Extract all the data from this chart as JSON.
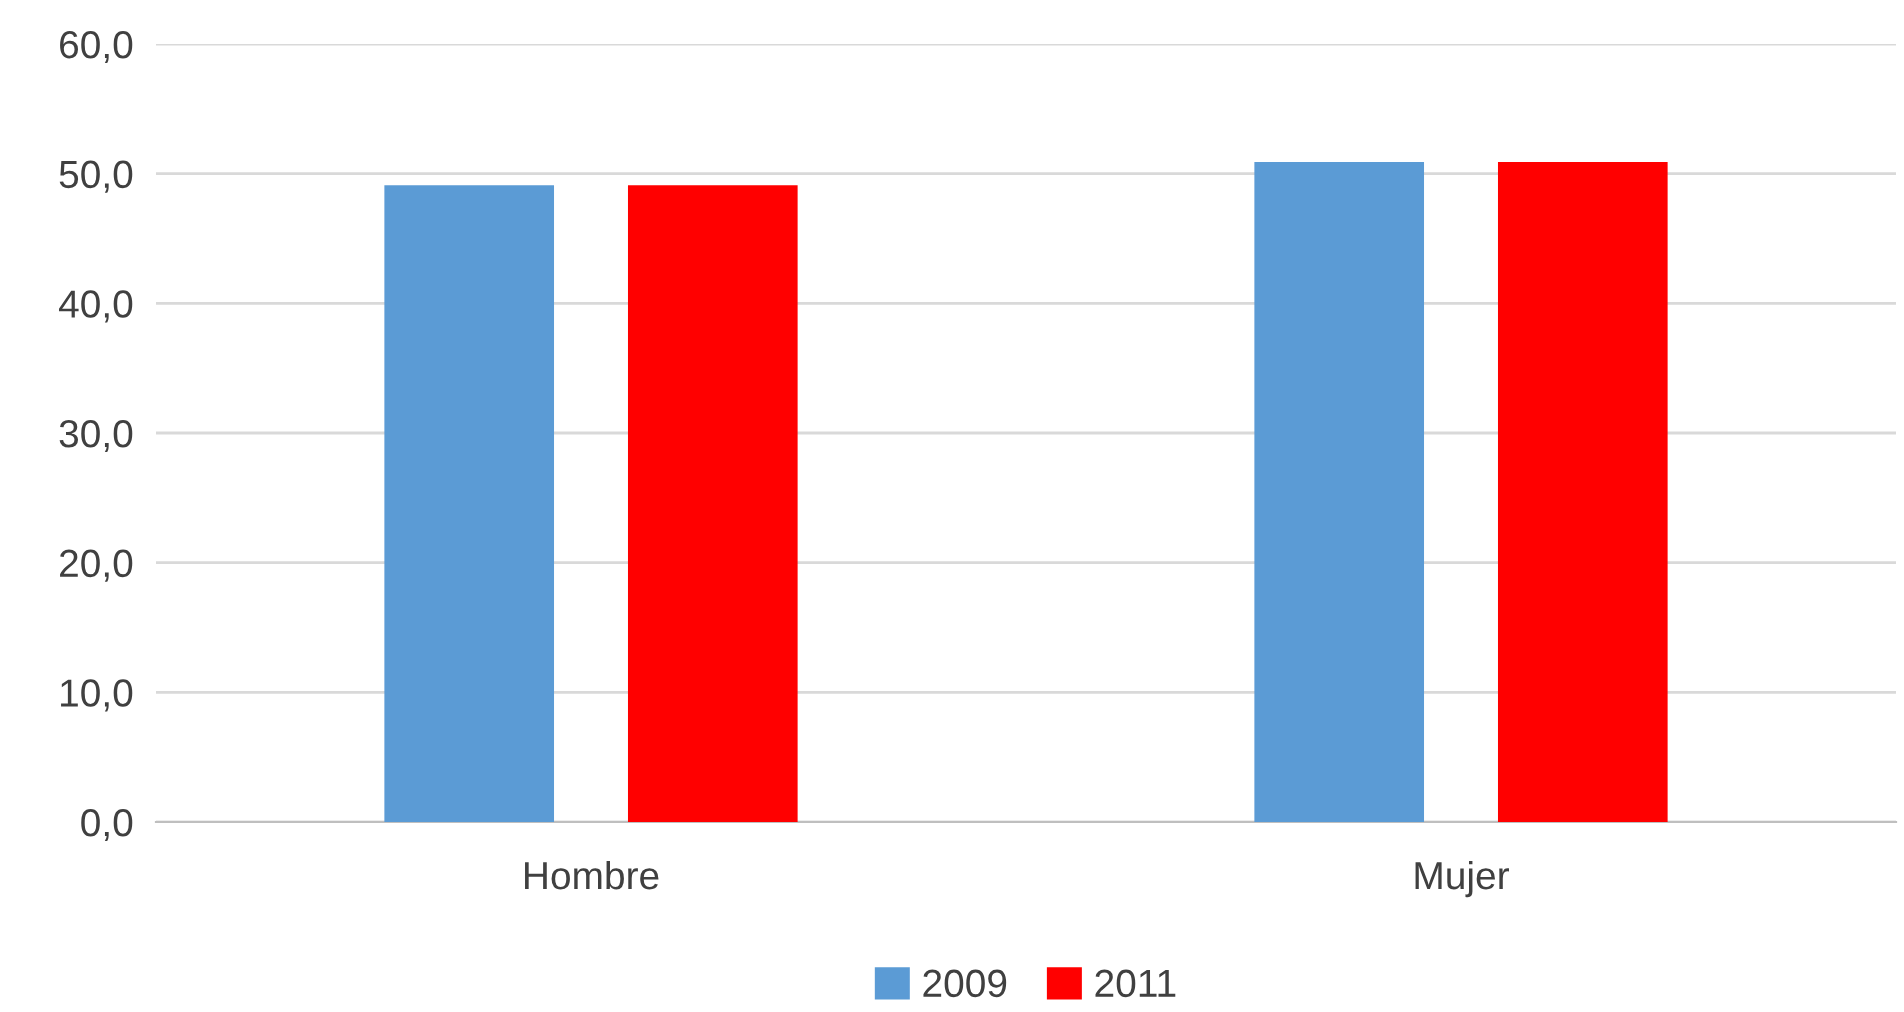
{
  "chart_data": {
    "type": "bar",
    "categories": [
      "Hombre",
      "Mujer"
    ],
    "series": [
      {
        "name": "2009",
        "color": "#5b9bd5",
        "values": [
          49.1,
          50.9
        ]
      },
      {
        "name": "2011",
        "color": "#ff0000",
        "values": [
          49.1,
          50.9
        ]
      }
    ],
    "ylim": [
      0,
      60
    ],
    "yticks": [
      {
        "value": 0,
        "label": "0,0"
      },
      {
        "value": 10,
        "label": "10,0"
      },
      {
        "value": 20,
        "label": "20,0"
      },
      {
        "value": 30,
        "label": "30,0"
      },
      {
        "value": 40,
        "label": "40,0"
      },
      {
        "value": 50,
        "label": "50,0"
      },
      {
        "value": 60,
        "label": "60,0"
      }
    ],
    "grid": "y",
    "legend": "bottom"
  }
}
